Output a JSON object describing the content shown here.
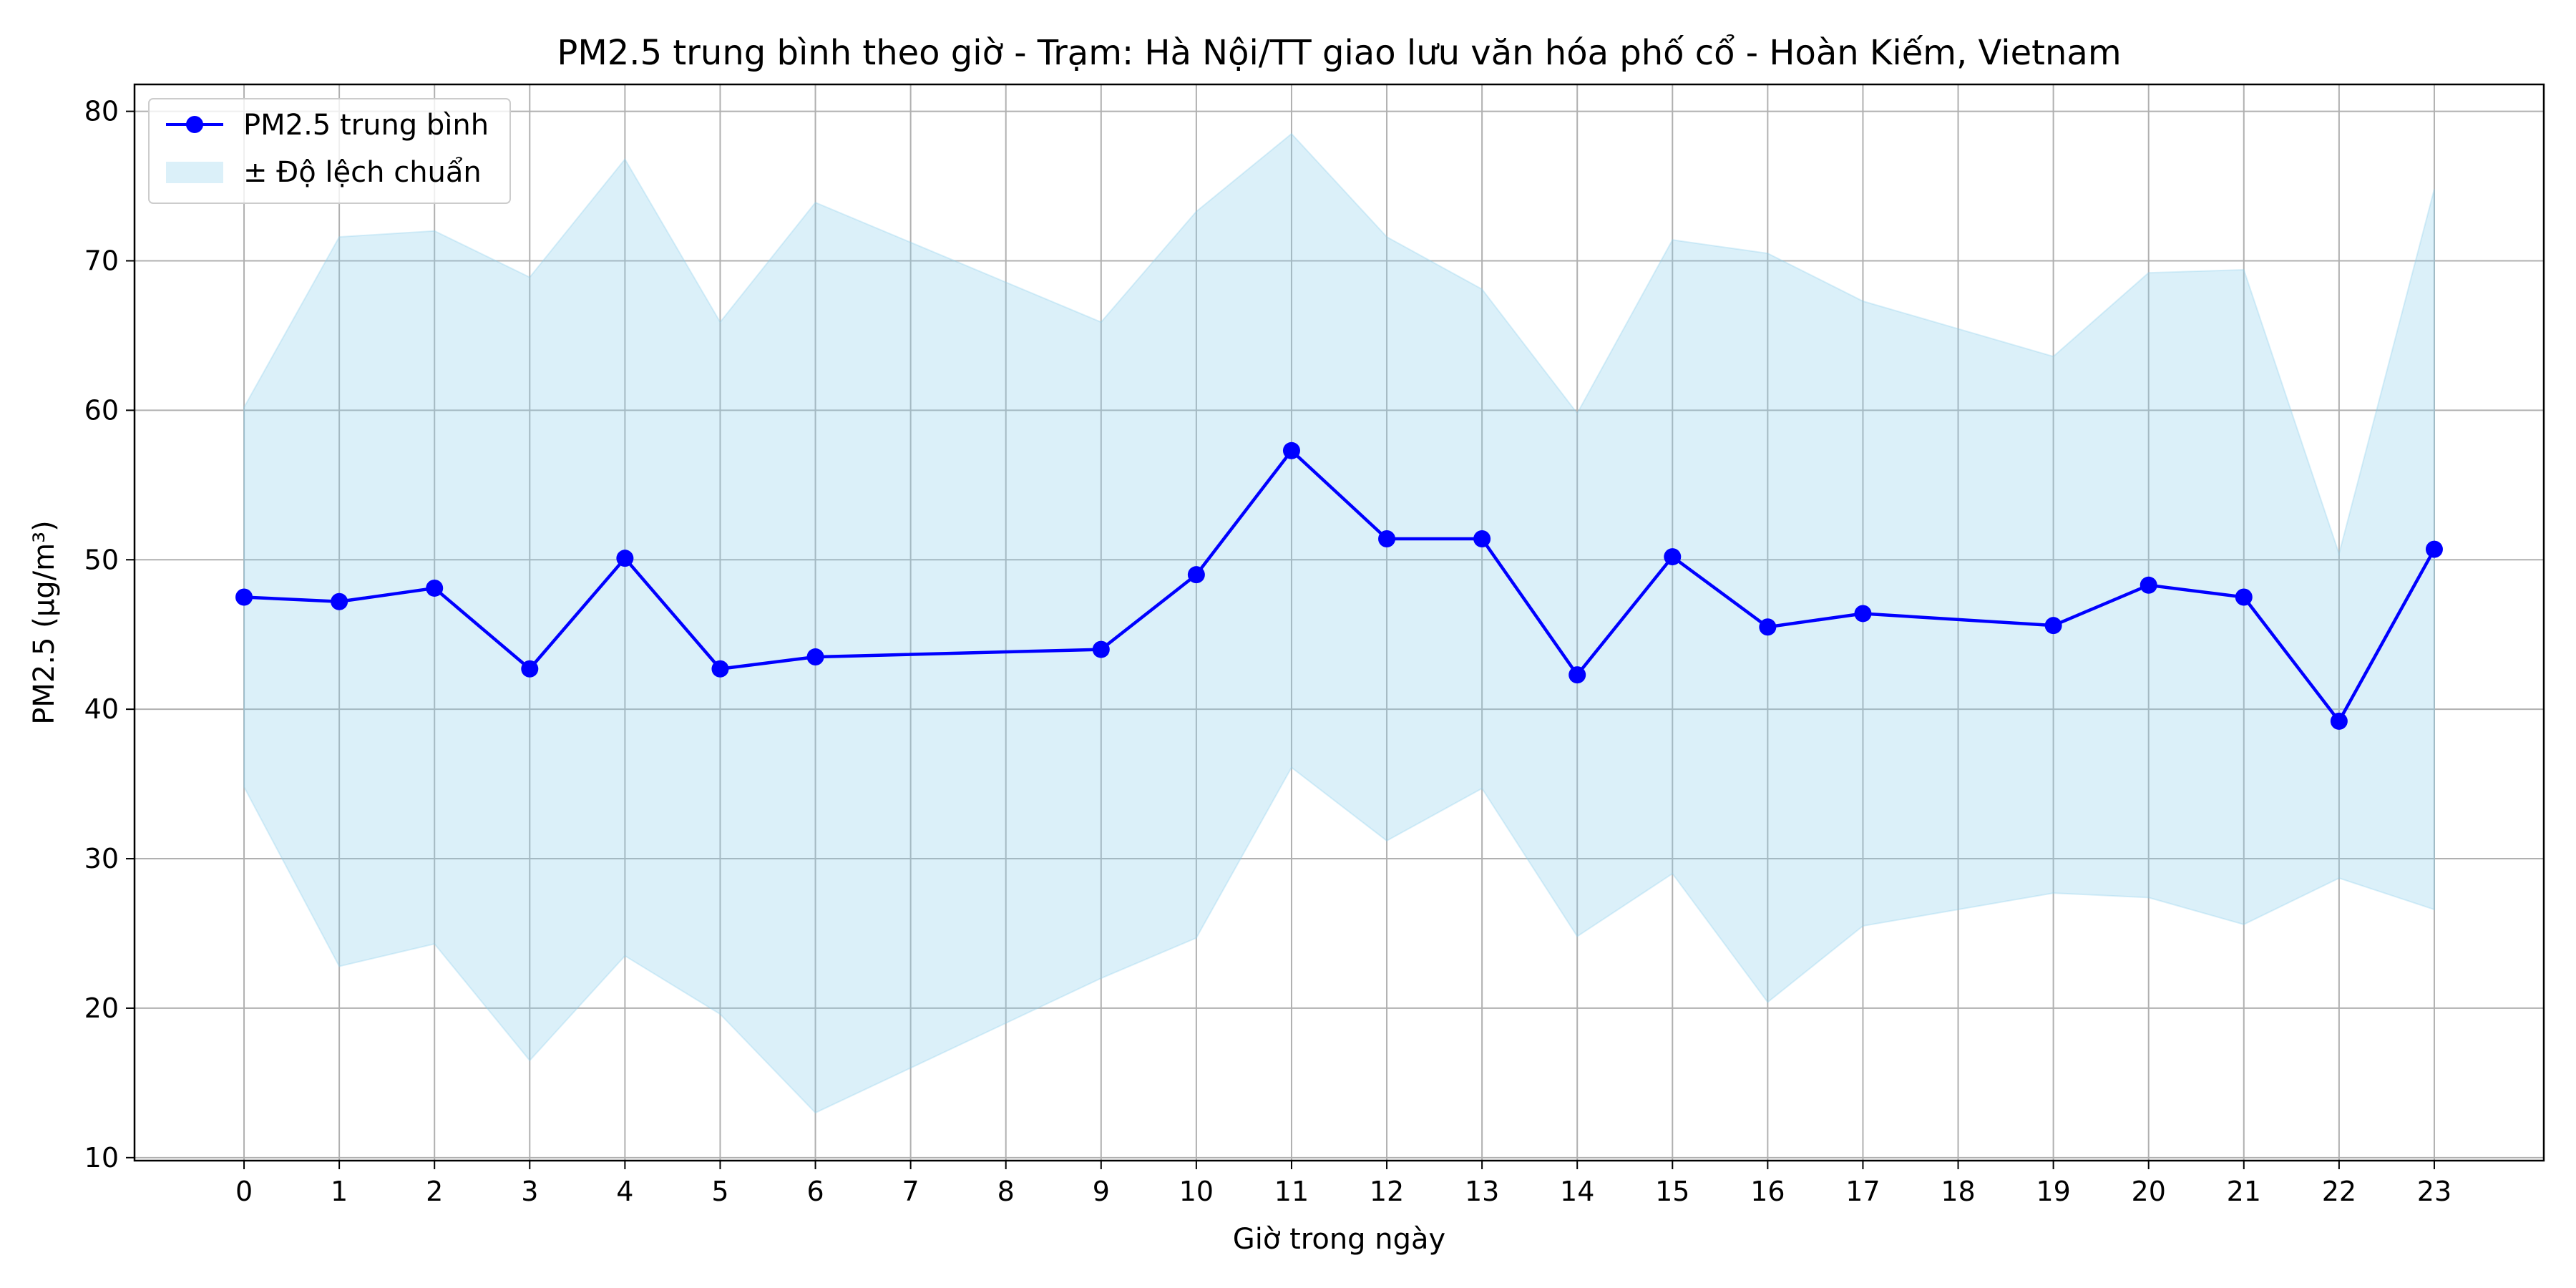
{
  "chart_data": {
    "type": "line",
    "title": "PM2.5 trung bình theo giờ - Trạm: Hà Nội/TT giao lưu văn hóa phố cổ - Hoàn Kiếm, Vietnam",
    "xlabel": "Giờ trong ngày",
    "ylabel": "PM2.5 (µg/m³)",
    "xlim": [
      -1.15,
      24.15
    ],
    "ylim": [
      9.8,
      81.8
    ],
    "x_ticks": [
      0,
      1,
      2,
      3,
      4,
      5,
      6,
      7,
      8,
      9,
      10,
      11,
      12,
      13,
      14,
      15,
      16,
      17,
      18,
      19,
      20,
      21,
      22,
      23
    ],
    "y_ticks": [
      10,
      20,
      30,
      40,
      50,
      60,
      70,
      80
    ],
    "grid": true,
    "legend_position": "top-left",
    "x": [
      0,
      1,
      2,
      3,
      4,
      5,
      6,
      9,
      10,
      11,
      12,
      13,
      14,
      15,
      16,
      17,
      19,
      20,
      21,
      22,
      23
    ],
    "series": [
      {
        "name": "PM2.5 trung bình",
        "kind": "line-marker",
        "color": "#0000ff",
        "values": [
          47.5,
          47.2,
          48.1,
          42.7,
          50.1,
          42.7,
          43.5,
          44.0,
          49.0,
          57.3,
          51.4,
          51.4,
          42.3,
          50.2,
          45.5,
          46.4,
          45.6,
          48.3,
          47.5,
          39.2,
          50.7
        ]
      },
      {
        "name": "± Độ lệch chuẩn",
        "kind": "band",
        "color": "#87ceeb",
        "upper": [
          60.2,
          71.6,
          72.0,
          68.9,
          76.8,
          65.9,
          73.9,
          65.9,
          73.3,
          78.5,
          71.6,
          68.1,
          59.8,
          71.4,
          70.5,
          67.3,
          63.6,
          69.2,
          69.4,
          50.4,
          74.8
        ],
        "lower": [
          34.8,
          22.8,
          24.3,
          16.5,
          23.5,
          19.6,
          13.0,
          22.0,
          24.7,
          36.1,
          31.2,
          34.7,
          24.8,
          29.0,
          20.4,
          25.5,
          27.7,
          27.4,
          25.6,
          28.7,
          26.6
        ]
      }
    ]
  }
}
